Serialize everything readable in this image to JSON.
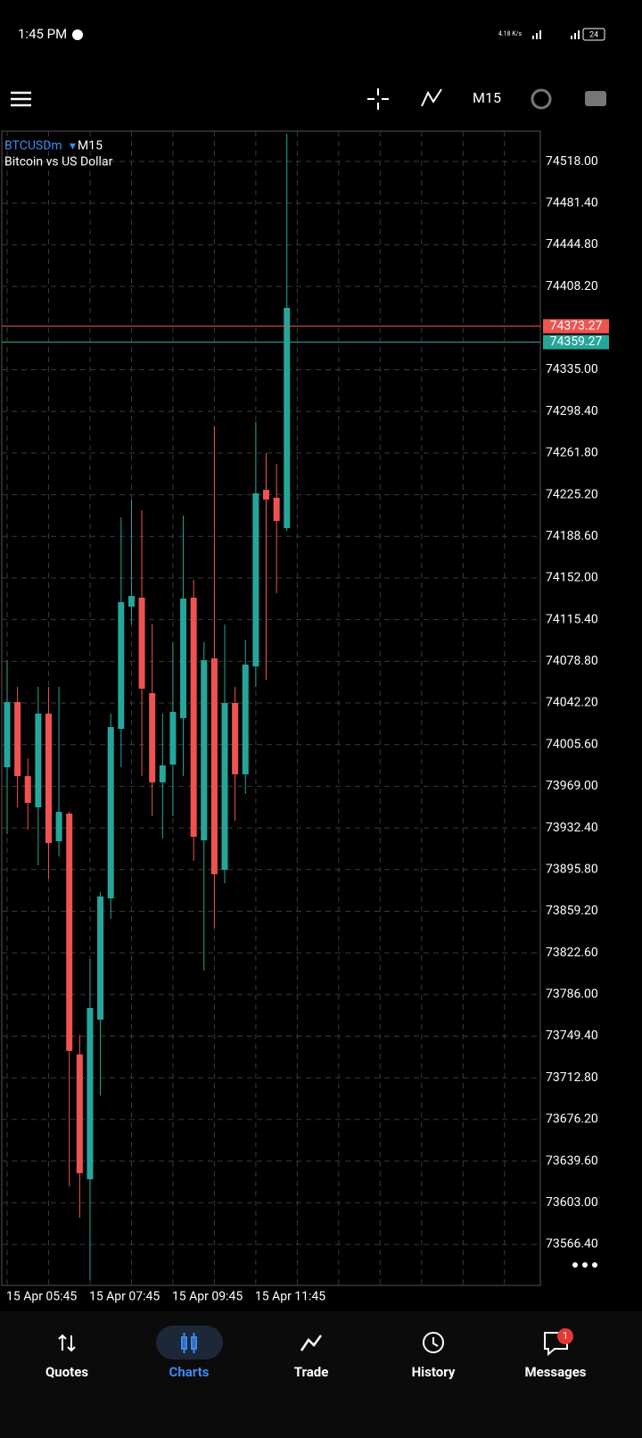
{
  "status_bar": {
    "time": "1:45 PM",
    "net_speed": "4.18 K/s",
    "battery": "24"
  },
  "toolbar": {
    "timeframe": "M15"
  },
  "chart_header": {
    "symbol": "BTCUSDm",
    "timeframe": "M15",
    "description": "Bitcoin vs US Dollar"
  },
  "chart_data": {
    "type": "candlestick",
    "categories": [
      "15 Apr 05:45",
      null,
      null,
      null,
      null,
      null,
      null,
      null,
      "15 Apr 07:45",
      null,
      null,
      null,
      null,
      null,
      null,
      null,
      "15 Apr 09:45",
      null,
      null,
      null,
      null,
      null,
      null,
      null,
      "15 Apr 11:45",
      null,
      null,
      null
    ],
    "open": [
      73985.7,
      74043.0,
      73977.9,
      73950.5,
      74032.8,
      73920.7,
      73945.0,
      73733.3,
      73623.6,
      73763.9,
      73870.5,
      74019.4,
      74126.8,
      74134.7,
      74050.8,
      73972.4,
      73988.1,
      74028.8,
      74134.7,
      73921.5,
      74081.4,
      73895.6,
      74042.2,
      73979.5,
      74074.3,
      74229.5,
      74222.5,
      74195.8
    ],
    "high": [
      74079.8,
      74056.3,
      73993.6,
      74056.3,
      74056.3,
      74056.3,
      73946.5,
      73750.5,
      73817.2,
      73876.0,
      74032.8,
      74205.2,
      74220.9,
      74211.5,
      74111.2,
      74032.8,
      74095.5,
      74206.8,
      74150.4,
      74095.5,
      74285.2,
      74111.2,
      74056.3,
      74097.8,
      74289.1,
      74261.7,
      74252.3,
      74542.3
    ],
    "low": [
      73926.9,
      73950.5,
      73930.9,
      73899.5,
      73887.7,
      73907.3,
      73617.3,
      73589.9,
      73535.0,
      73697.2,
      73852.5,
      73985.7,
      74111.2,
      73977.9,
      73942.6,
      73923.0,
      73942.6,
      73977.9,
      73903.4,
      73807.0,
      73844.6,
      73883.8,
      73938.7,
      73962.2,
      74056.3,
      74062.6,
      74138.6,
      74193.5
    ],
    "close": [
      74043.0,
      73977.9,
      73954.4,
      74032.8,
      73919.1,
      73946.5,
      73736.4,
      73629.0,
      73774.1,
      73872.1,
      74021.0,
      74130.8,
      74136.2,
      74054.7,
      73972.4,
      73987.3,
      74034.3,
      74133.9,
      73924.6,
      74079.8,
      73891.7,
      74042.2,
      73979.5,
      74075.9,
      74226.4,
      74220.9,
      74202.1,
      74389.4
    ],
    "up_color": "#26a69a",
    "down_color": "#ef5350",
    "ylim": [
      73530.3,
      74544.7
    ],
    "yticks": [
      {
        "value": 74518.0,
        "label": "74518.00"
      },
      {
        "value": 74481.4,
        "label": "74481.40"
      },
      {
        "value": 74444.8,
        "label": "74444.80"
      },
      {
        "value": 74408.2,
        "label": "74408.20"
      },
      {
        "value": 74335.0,
        "label": "74335.00"
      },
      {
        "value": 74298.4,
        "label": "74298.40"
      },
      {
        "value": 74261.8,
        "label": "74261.80"
      },
      {
        "value": 74225.2,
        "label": "74225.20"
      },
      {
        "value": 74188.6,
        "label": "74188.60"
      },
      {
        "value": 74152.0,
        "label": "74152.00"
      },
      {
        "value": 74115.4,
        "label": "74115.40"
      },
      {
        "value": 74078.8,
        "label": "74078.80"
      },
      {
        "value": 74042.2,
        "label": "74042.20"
      },
      {
        "value": 74005.6,
        "label": "74005.60"
      },
      {
        "value": 73969.0,
        "label": "73969.00"
      },
      {
        "value": 73932.4,
        "label": "73932.40"
      },
      {
        "value": 73895.8,
        "label": "73895.80"
      },
      {
        "value": 73859.2,
        "label": "73859.20"
      },
      {
        "value": 73822.6,
        "label": "73822.60"
      },
      {
        "value": 73786.0,
        "label": "73786.00"
      },
      {
        "value": 73749.4,
        "label": "73749.40"
      },
      {
        "value": 73712.8,
        "label": "73712.80"
      },
      {
        "value": 73676.2,
        "label": "73676.20"
      },
      {
        "value": 73639.6,
        "label": "73639.60"
      },
      {
        "value": 73603.0,
        "label": "73603.00"
      },
      {
        "value": 73566.4,
        "label": "73566.40"
      }
    ],
    "grid": true,
    "price_lines": [
      {
        "value": 74373.27,
        "color": "#ef5350"
      },
      {
        "value": 74359.27,
        "color": "#26a69a"
      }
    ]
  },
  "nav": {
    "tabs": [
      {
        "label": "Quotes"
      },
      {
        "label": "Charts"
      },
      {
        "label": "Trade"
      },
      {
        "label": "History"
      },
      {
        "label": "Messages",
        "badge": 1
      }
    ],
    "active": 1
  }
}
